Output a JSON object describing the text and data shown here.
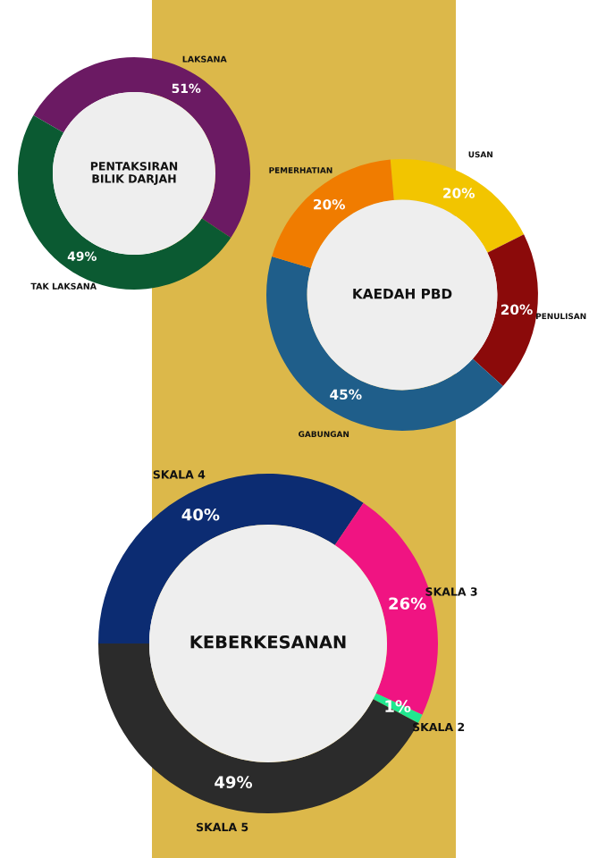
{
  "chart_data": [
    {
      "type": "donut",
      "title": "PENTAKSIRAN\nBILIK DARJAH",
      "categories": [
        "LAKSANA",
        "TAK LAKSANA"
      ],
      "values": [
        51,
        49
      ],
      "colors": [
        "#6b1a63",
        "#0b5a32"
      ],
      "value_labels": [
        "51%",
        "49%"
      ]
    },
    {
      "type": "donut",
      "title": "KAEDAH PBD",
      "categories": [
        "USAN",
        "PENULISAN",
        "GABUNGAN",
        "PEMERHATIAN"
      ],
      "values": [
        20,
        20,
        45,
        20
      ],
      "colors": [
        "#f2c500",
        "#8b0a0a",
        "#1f5e8a",
        "#f07c00"
      ],
      "value_labels": [
        "20%",
        "20%",
        "45%",
        "20%"
      ]
    },
    {
      "type": "donut",
      "title": "KEBERKESANAN",
      "categories": [
        "SKALA 4",
        "SKALA 3",
        "SKALA 2",
        "SKALA 5"
      ],
      "values": [
        40,
        26,
        1,
        49
      ],
      "colors": [
        "#0c2c72",
        "#f01482",
        "#20e890",
        "#2b2b2b"
      ],
      "value_labels": [
        "40%",
        "26%",
        "1%",
        "49%"
      ]
    }
  ]
}
